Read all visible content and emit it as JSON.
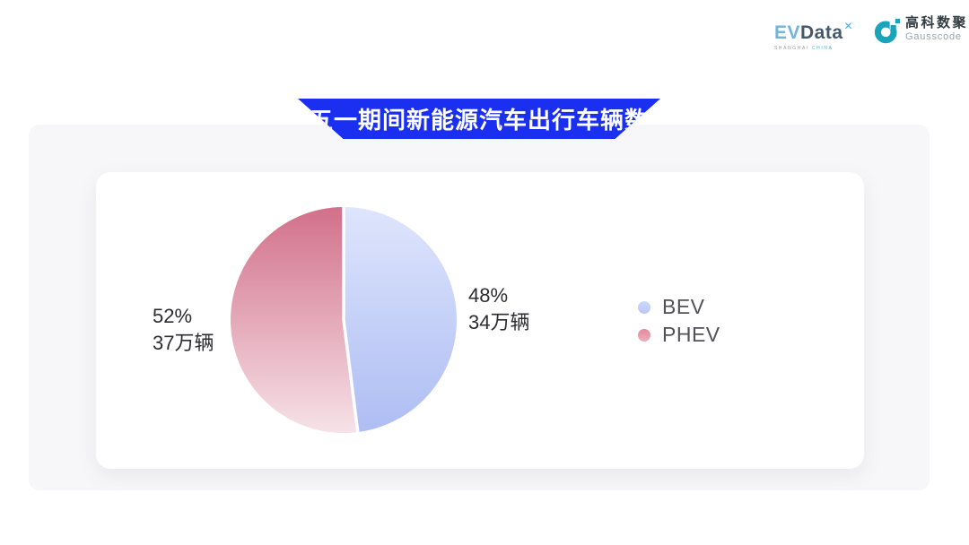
{
  "page": {
    "background": "#ffffff",
    "accent_blue": "#1B2FF0"
  },
  "header": {
    "evdata_logo": {
      "ev": "EV",
      "data": "Data",
      "mark": "✕",
      "caption_l": "SHANGHAI",
      "caption_r": "CHINA",
      "icon_color": "#3EB7E8"
    },
    "gausscode_logo": {
      "name_cn": "高科数聚",
      "name_en": "Gausscode",
      "icon_color": "#1AA4BC"
    }
  },
  "banner": {
    "title": "五一期间新能源汽车出行车辆数",
    "background": "#1B2FF0",
    "text_color": "#ffffff"
  },
  "chart_data": {
    "type": "pie",
    "title": "五一期间新能源汽车出行车辆数",
    "unit": "万辆",
    "series": [
      {
        "name": "BEV",
        "percent": 48,
        "value": 34,
        "percent_label": "48%",
        "value_label": "34万辆",
        "slice_gradient": [
          "#dee5fc",
          "#aebdf3"
        ],
        "dot_gradient": [
          "#ccd9fb",
          "#b9c7f6"
        ]
      },
      {
        "name": "PHEV",
        "percent": 52,
        "value": 37,
        "percent_label": "52%",
        "value_label": "37万辆",
        "slice_gradient": [
          "#d2708a",
          "#f6e2e8"
        ],
        "dot_gradient": [
          "#e2899d",
          "#ecafbd"
        ]
      }
    ],
    "start_angle_deg": 0,
    "direction": "clockwise",
    "slice_gap_color": "#ffffff",
    "legend_position": "right",
    "legend": [
      "BEV",
      "PHEV"
    ]
  }
}
